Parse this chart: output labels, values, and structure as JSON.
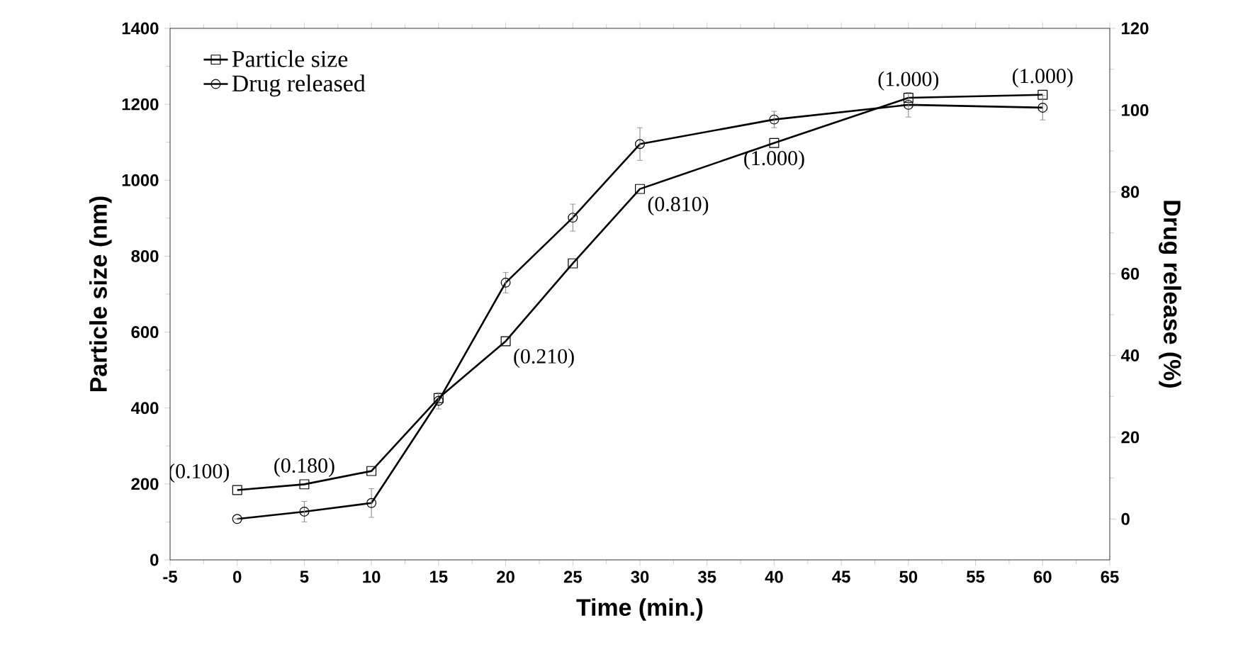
{
  "chart_data": {
    "type": "line",
    "xlabel": "Time (min.)",
    "ylabel": "Particle size (nm)",
    "y2label": "Drug release (%)",
    "x": [
      0,
      5,
      10,
      15,
      20,
      25,
      30,
      40,
      50,
      60
    ],
    "series": [
      {
        "name": "Particle size",
        "color": "#000000",
        "marker": "square",
        "values": [
          184,
          199,
          234,
          426,
          576,
          781,
          977,
          1098,
          1217,
          1225
        ]
      },
      {
        "name": "Drug released",
        "color": "#000000",
        "marker": "circle",
        "axis": "y2",
        "values": [
          0,
          1.8,
          3.9,
          28.9,
          57.8,
          73.7,
          91.7,
          97.7,
          101.3,
          100.6
        ],
        "errors": [
          null,
          2.5,
          3.5,
          2,
          2.5,
          3.3,
          4,
          2,
          3,
          3
        ]
      }
    ],
    "xlim": [
      -5,
      65
    ],
    "xticks": [
      -5,
      0,
      5,
      10,
      15,
      20,
      25,
      30,
      35,
      40,
      45,
      50,
      55,
      60,
      65
    ],
    "ylim": [
      0,
      1400
    ],
    "yticks": [
      0,
      200,
      400,
      600,
      800,
      1000,
      1200,
      1400
    ],
    "y2lim": [
      -10,
      120
    ],
    "y2ticks": [
      0,
      20,
      40,
      60,
      80,
      100,
      120
    ],
    "annotations": [
      {
        "text": "(0.100)",
        "x": 0,
        "y": 184
      },
      {
        "text": "(0.180)",
        "x": 5,
        "y": 199
      },
      {
        "text": "(0.210)",
        "x": 20,
        "y": 576
      },
      {
        "text": "(0.810)",
        "x": 30,
        "y": 977
      },
      {
        "text": "(1.000)",
        "x": 40,
        "y": 1098
      },
      {
        "text": "(1.000)",
        "x": 50,
        "y": 1217
      },
      {
        "text": "(1.000)",
        "x": 60,
        "y": 1225
      }
    ],
    "legend": "top left",
    "line_style": "solid",
    "grid": false
  }
}
